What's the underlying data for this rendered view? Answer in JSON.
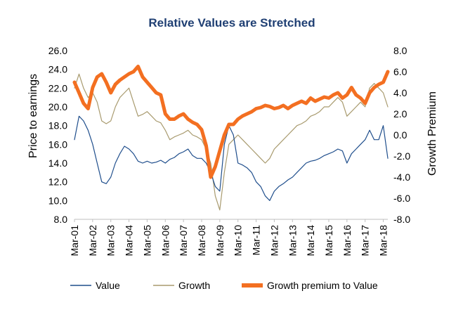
{
  "chart_data": {
    "type": "line",
    "title": "Relative Values are Stretched",
    "ylabel": "Price to earnings",
    "y2label": "Growth Premium",
    "ylim": [
      8.0,
      26.0
    ],
    "y2lim": [
      -8.0,
      8.0
    ],
    "yticks": [
      "26.0",
      "24.0",
      "22.0",
      "20.0",
      "18.0",
      "16.0",
      "14.0",
      "12.0",
      "10.0",
      "8.0"
    ],
    "y2ticks": [
      "8.0",
      "6.0",
      "4.0",
      "2.0",
      "0.0",
      "-2.0",
      "-4.0",
      "-6.0",
      "-8.0"
    ],
    "categories": [
      "Mar-01",
      "Mar-02",
      "Mar-03",
      "Mar-04",
      "Mar-05",
      "Mar-06",
      "Mar-07",
      "Mar-08",
      "Mar-09",
      "Mar-10",
      "Mar-11",
      "Mar-12",
      "Mar-13",
      "Mar-14",
      "Mar-15",
      "Mar-16",
      "Mar-17",
      "Mar-18"
    ],
    "legend_position": "bottom",
    "series": [
      {
        "name": "Value",
        "axis": "left",
        "color": "#1f4e8c",
        "x": [
          2001.0,
          2001.25,
          2001.5,
          2001.75,
          2002.0,
          2002.25,
          2002.5,
          2002.75,
          2003.0,
          2003.25,
          2003.5,
          2003.75,
          2004.0,
          2004.25,
          2004.5,
          2004.75,
          2005.0,
          2005.25,
          2005.5,
          2005.75,
          2006.0,
          2006.25,
          2006.5,
          2006.75,
          2007.0,
          2007.25,
          2007.5,
          2007.75,
          2008.0,
          2008.25,
          2008.5,
          2008.75,
          2009.0,
          2009.25,
          2009.5,
          2009.75,
          2010.0,
          2010.25,
          2010.5,
          2010.75,
          2011.0,
          2011.25,
          2011.5,
          2011.75,
          2012.0,
          2012.25,
          2012.5,
          2012.75,
          2013.0,
          2013.25,
          2013.5,
          2013.75,
          2014.0,
          2014.25,
          2014.5,
          2014.75,
          2015.0,
          2015.25,
          2015.5,
          2015.75,
          2016.0,
          2016.25,
          2016.5,
          2016.75,
          2017.0,
          2017.25,
          2017.5,
          2017.75,
          2018.0,
          2018.25
        ],
        "y": [
          16.5,
          19.0,
          18.5,
          17.5,
          16.0,
          14.0,
          12.0,
          11.8,
          12.5,
          14.0,
          15.0,
          15.8,
          15.5,
          15.0,
          14.2,
          14.0,
          14.2,
          14.0,
          14.1,
          14.3,
          14.0,
          14.4,
          14.6,
          15.0,
          15.2,
          15.5,
          14.8,
          14.5,
          14.5,
          14.0,
          13.0,
          11.5,
          11.0,
          16.0,
          18.0,
          17.0,
          14.0,
          13.8,
          13.5,
          13.0,
          12.0,
          11.5,
          10.5,
          10.0,
          11.0,
          11.5,
          11.8,
          12.2,
          12.5,
          13.0,
          13.5,
          14.0,
          14.2,
          14.3,
          14.5,
          14.8,
          15.0,
          15.2,
          15.5,
          15.3,
          14.0,
          15.0,
          15.5,
          16.0,
          16.5,
          17.5,
          16.5,
          16.5,
          18.0,
          14.5
        ]
      },
      {
        "name": "Growth",
        "axis": "left",
        "color": "#a89a6e",
        "x": [
          2001.0,
          2001.25,
          2001.5,
          2001.75,
          2002.0,
          2002.25,
          2002.5,
          2002.75,
          2003.0,
          2003.25,
          2003.5,
          2003.75,
          2004.0,
          2004.25,
          2004.5,
          2004.75,
          2005.0,
          2005.25,
          2005.5,
          2005.75,
          2006.0,
          2006.25,
          2006.5,
          2006.75,
          2007.0,
          2007.25,
          2007.5,
          2007.75,
          2008.0,
          2008.25,
          2008.5,
          2008.75,
          2009.0,
          2009.25,
          2009.5,
          2009.75,
          2010.0,
          2010.25,
          2010.5,
          2010.75,
          2011.0,
          2011.25,
          2011.5,
          2011.75,
          2012.0,
          2012.25,
          2012.5,
          2012.75,
          2013.0,
          2013.25,
          2013.5,
          2013.75,
          2014.0,
          2014.25,
          2014.5,
          2014.75,
          2015.0,
          2015.25,
          2015.5,
          2015.75,
          2016.0,
          2016.25,
          2016.5,
          2016.75,
          2017.0,
          2017.25,
          2017.5,
          2017.75,
          2018.0,
          2018.25
        ],
        "y": [
          22.0,
          23.5,
          22.0,
          21.0,
          21.5,
          20.5,
          18.5,
          18.2,
          18.5,
          20.0,
          21.0,
          21.5,
          22.0,
          20.5,
          19.0,
          19.2,
          19.5,
          19.0,
          18.5,
          18.3,
          17.5,
          16.5,
          16.8,
          17.0,
          17.2,
          17.5,
          17.0,
          16.8,
          16.5,
          15.5,
          14.0,
          10.5,
          9.0,
          13.0,
          16.0,
          16.5,
          17.0,
          16.5,
          16.0,
          15.5,
          15.0,
          14.5,
          14.0,
          14.5,
          15.5,
          16.0,
          16.5,
          17.0,
          17.5,
          18.0,
          18.2,
          18.5,
          19.0,
          19.2,
          19.5,
          20.0,
          20.0,
          20.5,
          21.0,
          20.5,
          19.0,
          19.5,
          20.0,
          20.5,
          20.0,
          22.0,
          22.5,
          22.0,
          21.5,
          20.0
        ]
      },
      {
        "name": "Growth premium to Value",
        "axis": "right",
        "color": "#f36f21",
        "x": [
          2001.0,
          2001.25,
          2001.5,
          2001.75,
          2002.0,
          2002.25,
          2002.5,
          2002.75,
          2003.0,
          2003.25,
          2003.5,
          2003.75,
          2004.0,
          2004.25,
          2004.5,
          2004.75,
          2005.0,
          2005.25,
          2005.5,
          2005.75,
          2006.0,
          2006.25,
          2006.5,
          2006.75,
          2007.0,
          2007.25,
          2007.5,
          2007.75,
          2008.0,
          2008.25,
          2008.5,
          2008.75,
          2009.0,
          2009.25,
          2009.5,
          2009.75,
          2010.0,
          2010.25,
          2010.5,
          2010.75,
          2011.0,
          2011.25,
          2011.5,
          2011.75,
          2012.0,
          2012.25,
          2012.5,
          2012.75,
          2013.0,
          2013.25,
          2013.5,
          2013.75,
          2014.0,
          2014.25,
          2014.5,
          2014.75,
          2015.0,
          2015.25,
          2015.5,
          2015.75,
          2016.0,
          2016.25,
          2016.5,
          2016.75,
          2017.0,
          2017.25,
          2017.5,
          2017.75,
          2018.0,
          2018.25
        ],
        "y": [
          5.0,
          4.0,
          3.0,
          2.5,
          4.5,
          5.5,
          5.8,
          5.0,
          4.0,
          4.8,
          5.2,
          5.5,
          5.8,
          6.0,
          6.5,
          5.5,
          5.0,
          4.5,
          4.0,
          3.8,
          2.0,
          1.5,
          1.5,
          1.8,
          2.0,
          1.5,
          1.2,
          1.0,
          0.5,
          -1.0,
          -4.0,
          -3.0,
          -1.5,
          0.0,
          1.0,
          1.0,
          1.5,
          1.8,
          2.0,
          2.2,
          2.5,
          2.6,
          2.8,
          2.7,
          2.5,
          2.6,
          2.8,
          2.5,
          2.8,
          3.0,
          3.2,
          3.0,
          3.5,
          3.2,
          3.4,
          3.6,
          3.5,
          3.8,
          4.0,
          3.5,
          3.8,
          4.5,
          3.8,
          3.5,
          3.0,
          4.0,
          4.5,
          4.8,
          5.0,
          6.0
        ]
      }
    ]
  }
}
